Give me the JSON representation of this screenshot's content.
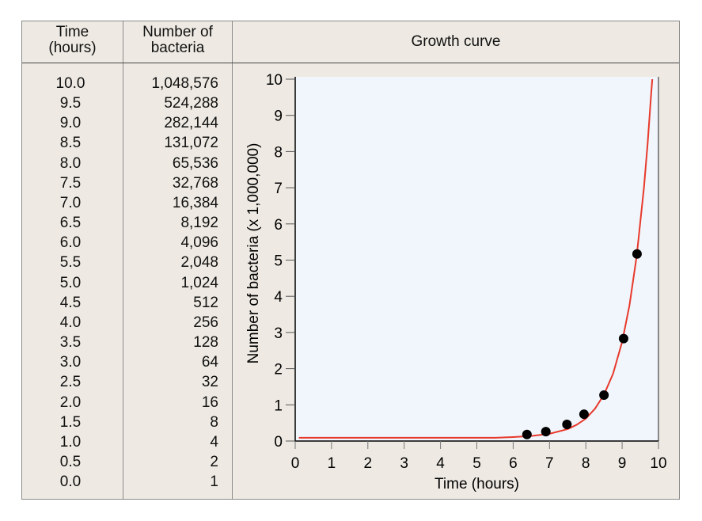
{
  "table": {
    "headers": {
      "time": [
        "Time",
        "(hours)"
      ],
      "count": [
        "Number of",
        "bacteria"
      ],
      "chart": "Growth curve"
    },
    "rows": [
      {
        "time": "10.0",
        "count": "1,048,576"
      },
      {
        "time": "9.5",
        "count": "524,288"
      },
      {
        "time": "9.0",
        "count": "282,144"
      },
      {
        "time": "8.5",
        "count": "131,072"
      },
      {
        "time": "8.0",
        "count": "65,536"
      },
      {
        "time": "7.5",
        "count": "32,768"
      },
      {
        "time": "7.0",
        "count": "16,384"
      },
      {
        "time": "6.5",
        "count": "8,192"
      },
      {
        "time": "6.0",
        "count": "4,096"
      },
      {
        "time": "5.5",
        "count": "2,048"
      },
      {
        "time": "5.0",
        "count": "1,024"
      },
      {
        "time": "4.5",
        "count": "512"
      },
      {
        "time": "4.0",
        "count": "256"
      },
      {
        "time": "3.5",
        "count": "128"
      },
      {
        "time": "3.0",
        "count": "64"
      },
      {
        "time": "2.5",
        "count": "32"
      },
      {
        "time": "2.0",
        "count": "16"
      },
      {
        "time": "1.5",
        "count": "8"
      },
      {
        "time": "1.0",
        "count": "4"
      },
      {
        "time": "0.5",
        "count": "2"
      },
      {
        "time": "0.0",
        "count": "1"
      }
    ]
  },
  "chart_data": {
    "type": "scatter",
    "title": "Growth curve",
    "xlabel": "Time (hours)",
    "ylabel": "Number of bacteria (x 1,000,000)",
    "xlim": [
      0,
      10
    ],
    "ylim": [
      0,
      10
    ],
    "xticks": [
      "0",
      "1",
      "2",
      "3",
      "4",
      "5",
      "6",
      "7",
      "8",
      "9",
      "10"
    ],
    "yticks": [
      "0",
      "1",
      "2",
      "3",
      "4",
      "5",
      "6",
      "7",
      "8",
      "9",
      "10"
    ],
    "grid": false,
    "points": [
      [
        6.38,
        0.18
      ],
      [
        6.9,
        0.26
      ],
      [
        7.48,
        0.46
      ],
      [
        7.95,
        0.74
      ],
      [
        8.5,
        1.27
      ],
      [
        9.04,
        2.83
      ],
      [
        9.41,
        5.17
      ]
    ],
    "curve": [
      [
        0.1,
        0.09
      ],
      [
        5,
        0.09
      ],
      [
        5.5,
        0.09
      ],
      [
        6,
        0.11
      ],
      [
        6.5,
        0.14
      ],
      [
        7,
        0.2
      ],
      [
        7.5,
        0.33
      ],
      [
        7.75,
        0.45
      ],
      [
        8,
        0.62
      ],
      [
        8.25,
        0.89
      ],
      [
        8.5,
        1.28
      ],
      [
        8.75,
        1.86
      ],
      [
        9,
        2.74
      ],
      [
        9.2,
        3.74
      ],
      [
        9.4,
        5.11
      ],
      [
        9.6,
        7.0
      ],
      [
        9.7,
        8.2
      ],
      [
        9.8,
        9.61
      ],
      [
        9.83,
        10
      ]
    ],
    "colors": {
      "curve": "#e8392b",
      "points": "#000000",
      "plot_bg": "#f0f6fc",
      "panel_bg": "#eeeae3"
    }
  }
}
